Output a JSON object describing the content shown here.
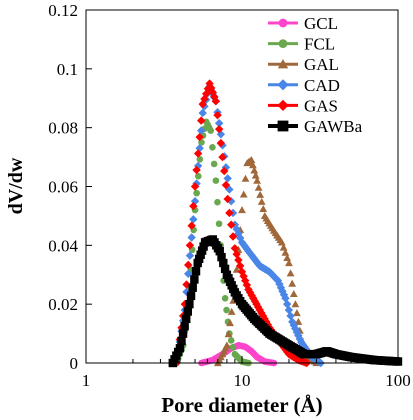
{
  "chart_data": {
    "type": "line",
    "xlabel": "Pore diameter (Å)",
    "ylabel": "dV/dw",
    "xscale": "log",
    "xlim": [
      1,
      100
    ],
    "ylim": [
      0,
      0.12
    ],
    "x_ticks": [
      {
        "value": 1,
        "label": "1"
      },
      {
        "value": 10,
        "label": "10"
      },
      {
        "value": 100,
        "label": "100"
      }
    ],
    "y_ticks": [
      {
        "value": 0,
        "label": "0"
      },
      {
        "value": 0.02,
        "label": "0.02"
      },
      {
        "value": 0.04,
        "label": "0.04"
      },
      {
        "value": 0.06,
        "label": "0.06"
      },
      {
        "value": 0.08,
        "label": "0.08"
      },
      {
        "value": 0.1,
        "label": "0.1"
      },
      {
        "value": 0.12,
        "label": "0.12"
      }
    ],
    "legend_position": "top-right",
    "grid": false,
    "series": [
      {
        "name": "GCL",
        "color": "#ff44cc",
        "marker": "circle",
        "points": [
          [
            5.5,
            0
          ],
          [
            6.5,
            0.001
          ],
          [
            7.5,
            0.003
          ],
          [
            8.5,
            0.005
          ],
          [
            9.5,
            0.006
          ],
          [
            10.5,
            0.0055
          ],
          [
            11.5,
            0.004
          ],
          [
            12.5,
            0.002
          ],
          [
            14,
            0.0005
          ],
          [
            16,
            0
          ]
        ]
      },
      {
        "name": "FCL",
        "color": "#6aa84f",
        "marker": "circle",
        "points": [
          [
            3.8,
            0
          ],
          [
            4.2,
            0.006
          ],
          [
            4.6,
            0.025
          ],
          [
            5.0,
            0.052
          ],
          [
            5.5,
            0.075
          ],
          [
            5.9,
            0.082
          ],
          [
            6.3,
            0.079
          ],
          [
            6.8,
            0.062
          ],
          [
            7.3,
            0.04
          ],
          [
            7.8,
            0.022
          ],
          [
            8.3,
            0.01
          ],
          [
            9.0,
            0.003
          ],
          [
            10,
            0.0005
          ],
          [
            11,
            0
          ]
        ]
      },
      {
        "name": "GAL",
        "color": "#a0683a",
        "marker": "triangle",
        "points": [
          [
            7.0,
            0
          ],
          [
            8.0,
            0.006
          ],
          [
            9.0,
            0.025
          ],
          [
            10.0,
            0.052
          ],
          [
            10.8,
            0.068
          ],
          [
            11.5,
            0.069
          ],
          [
            12.5,
            0.062
          ],
          [
            14,
            0.05
          ],
          [
            16,
            0.045
          ],
          [
            18,
            0.041
          ],
          [
            20,
            0.034
          ],
          [
            22,
            0.02
          ],
          [
            24,
            0.008
          ],
          [
            27,
            0.002
          ],
          [
            30,
            0
          ]
        ]
      },
      {
        "name": "CAD",
        "color": "#4a86e8",
        "marker": "diamond",
        "points": [
          [
            3.8,
            0
          ],
          [
            4.3,
            0.018
          ],
          [
            5.0,
            0.055
          ],
          [
            5.6,
            0.085
          ],
          [
            6.2,
            0.094
          ],
          [
            6.8,
            0.089
          ],
          [
            7.5,
            0.074
          ],
          [
            8.3,
            0.059
          ],
          [
            9.0,
            0.047
          ],
          [
            10,
            0.041
          ],
          [
            11,
            0.038
          ],
          [
            13,
            0.033
          ],
          [
            15,
            0.031
          ],
          [
            17,
            0.028
          ],
          [
            19,
            0.022
          ],
          [
            21,
            0.014
          ],
          [
            24,
            0.007
          ],
          [
            28,
            0.002
          ],
          [
            32,
            0
          ]
        ]
      },
      {
        "name": "GAS",
        "color": "#ff0000",
        "marker": "diamond",
        "points": [
          [
            3.8,
            0
          ],
          [
            4.3,
            0.02
          ],
          [
            5.0,
            0.06
          ],
          [
            5.6,
            0.088
          ],
          [
            6.2,
            0.095
          ],
          [
            6.8,
            0.089
          ],
          [
            7.5,
            0.07
          ],
          [
            8.3,
            0.051
          ],
          [
            9.0,
            0.039
          ],
          [
            10,
            0.031
          ],
          [
            11,
            0.025
          ],
          [
            13,
            0.018
          ],
          [
            15,
            0.012
          ],
          [
            17,
            0.008
          ],
          [
            20,
            0.003
          ],
          [
            23,
            0.001
          ],
          [
            26,
            0
          ]
        ]
      },
      {
        "name": "GAWBa",
        "color": "#000000",
        "marker": "square",
        "points": [
          [
            3.6,
            0
          ],
          [
            4.0,
            0.005
          ],
          [
            4.6,
            0.02
          ],
          [
            5.2,
            0.034
          ],
          [
            5.8,
            0.041
          ],
          [
            6.5,
            0.042
          ],
          [
            7.2,
            0.038
          ],
          [
            8.0,
            0.03
          ],
          [
            9.0,
            0.024
          ],
          [
            10,
            0.02
          ],
          [
            12,
            0.015
          ],
          [
            15,
            0.01
          ],
          [
            20,
            0.006
          ],
          [
            25,
            0.003
          ],
          [
            30,
            0.003
          ],
          [
            35,
            0.004
          ],
          [
            40,
            0.003
          ],
          [
            50,
            0.002
          ],
          [
            70,
            0.001
          ],
          [
            100,
            0.0005
          ]
        ]
      }
    ]
  }
}
